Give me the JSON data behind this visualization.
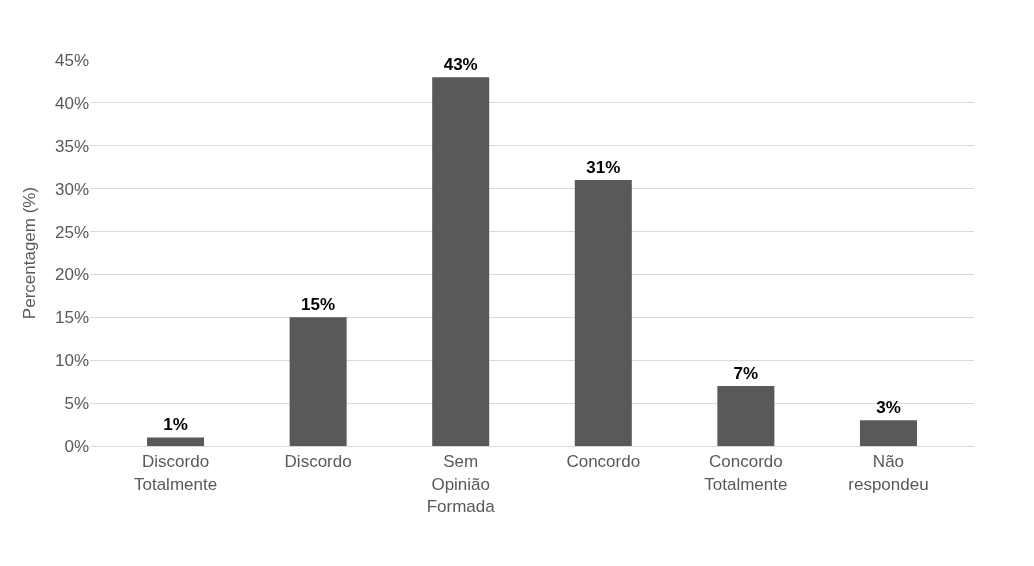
{
  "chart_data": {
    "type": "bar",
    "ylabel": "Percentagem (%)",
    "categories": [
      "Discordo Totalmente",
      "Discordo",
      "Sem Opinião Formada",
      "Concordo",
      "Concordo Totalmente",
      "Não respondeu"
    ],
    "values": [
      1,
      15,
      43,
      31,
      7,
      3
    ],
    "value_labels": [
      "1%",
      "15%",
      "43%",
      "31%",
      "7%",
      "3%"
    ],
    "color": "#595959",
    "ylim": [
      0,
      45
    ],
    "yticks": [
      {
        "value": 0,
        "label": "0%"
      },
      {
        "value": 5,
        "label": "5%"
      },
      {
        "value": 10,
        "label": "10%"
      },
      {
        "value": 15,
        "label": "15%"
      },
      {
        "value": 20,
        "label": "20%"
      },
      {
        "value": 25,
        "label": "25%"
      },
      {
        "value": 30,
        "label": "30%"
      },
      {
        "value": 35,
        "label": "35%"
      },
      {
        "value": 40,
        "label": "40%"
      },
      {
        "value": 45,
        "label": "45%"
      }
    ],
    "grid": "y"
  }
}
